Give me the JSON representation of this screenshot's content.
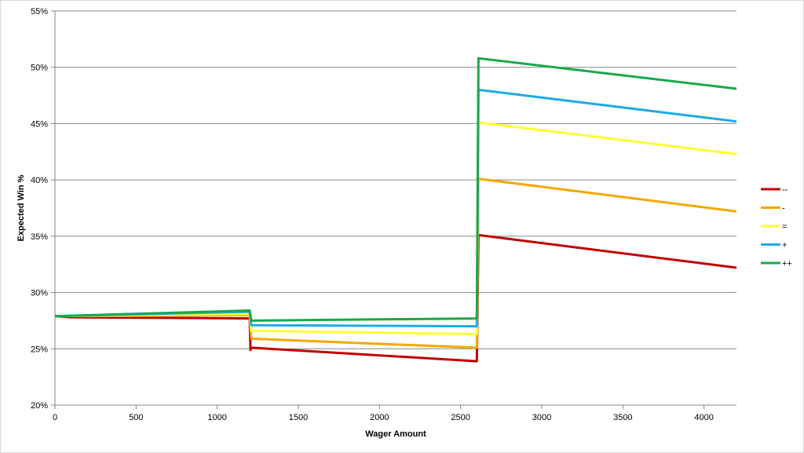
{
  "chart_data": {
    "type": "line",
    "xlabel": "Wager Amount",
    "ylabel": "Expected Win %",
    "xlim": [
      0,
      4200
    ],
    "ylim": [
      20,
      55
    ],
    "xticks": [
      0,
      500,
      1000,
      1500,
      2000,
      2500,
      3000,
      3500,
      4000
    ],
    "yticks": [
      20,
      25,
      30,
      35,
      40,
      45,
      50,
      55
    ],
    "ytick_suffix": "%",
    "grid": "horizontal",
    "legend": "right",
    "series": [
      {
        "name": "--",
        "color": "#c00000",
        "x": [
          0,
          100,
          1200,
          1205,
          1210,
          2600,
          2610,
          4200
        ],
        "y": [
          27.9,
          27.8,
          27.7,
          24.9,
          25.1,
          23.9,
          35.1,
          32.2
        ]
      },
      {
        "name": "-",
        "color": "#f5a800",
        "x": [
          0,
          1200,
          1210,
          2600,
          2610,
          4200
        ],
        "y": [
          27.9,
          28.0,
          25.9,
          25.1,
          40.1,
          37.2
        ]
      },
      {
        "name": "=",
        "color": "#ffff33",
        "x": [
          0,
          1200,
          1210,
          2600,
          2610,
          4200
        ],
        "y": [
          27.9,
          28.1,
          26.6,
          26.3,
          45.1,
          42.3
        ]
      },
      {
        "name": "+",
        "color": "#1eaae8",
        "x": [
          0,
          1200,
          1210,
          2600,
          2610,
          4200
        ],
        "y": [
          27.9,
          28.3,
          27.1,
          27.0,
          48.0,
          45.2
        ]
      },
      {
        "name": "++",
        "color": "#1aa84b",
        "x": [
          0,
          1200,
          1210,
          2600,
          2610,
          4200
        ],
        "y": [
          27.9,
          28.4,
          27.5,
          27.7,
          50.8,
          48.1
        ]
      }
    ]
  }
}
